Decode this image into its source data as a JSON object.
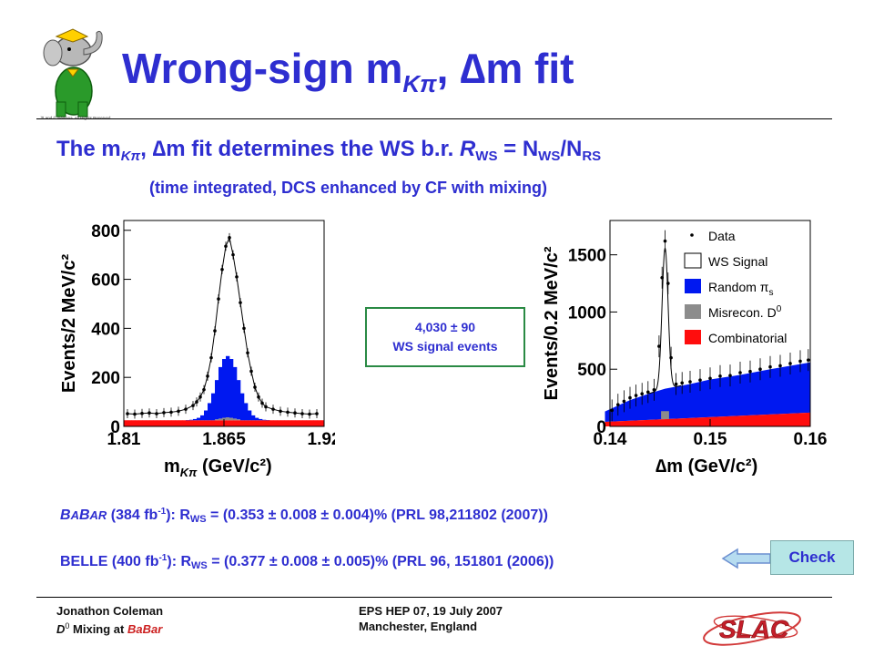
{
  "title": {
    "main": "Wrong-sign m",
    "sub": "Kπ",
    "comma": ",",
    "delta": "∆m",
    "fit": "fit"
  },
  "subtitle": {
    "lead": "The m",
    "sub_kpi": "Kπ",
    "mid": ", ∆m fit determines the WS b.r. ",
    "r": "R",
    "sub_ws": "WS",
    "eq": " = N",
    "sub_ws2": "WS",
    "slash": "/N",
    "sub_rs": "RS"
  },
  "note": "(time integrated, DCS enhanced by CF with mixing)",
  "signal_box": {
    "line1": "4,030 ± 90",
    "line2": "WS signal events"
  },
  "babar": {
    "b1": "B",
    "b2": "A",
    "b3": "B",
    "b4": "AR",
    "lumi": " (384 fb",
    "lumi_sup": "-1",
    "rest1": "): R",
    "sub": "WS",
    "rest2": " = (0.353 ± 0.008 ± 0.004)% (PRL 98,211802 (2007))"
  },
  "belle": {
    "lumi": "BELLE (400 fb",
    "lumi_sup": "-1",
    "rest1": "): R",
    "sub": "WS",
    "rest2": " = (0.377 ± 0.008 ± 0.005)% (PRL 96, 151801 (2006))"
  },
  "check_button": "Check",
  "footer": {
    "author": "Jonathon Coleman",
    "topic_d": "D",
    "topic_sup": "0",
    "topic_mid": " Mixing at ",
    "topic_red": "BaBar",
    "conf": "EPS HEP 07, 19 July 2007",
    "place": "Manchester, England"
  },
  "colors": {
    "title_blue": "#2e2ed0",
    "signal_blue": "#0018f0",
    "combinatorial_red": "#ff0d0d",
    "misrecon_gray": "#8c8c8c"
  },
  "icons": {
    "logo_left": "babar-elephant-logo",
    "logo_right": "slac-logo",
    "arrow": "left-arrow-icon"
  },
  "chart_data": [
    {
      "type": "histogram",
      "xlabel": "m",
      "xlabel_sub": "Kπ",
      "xlabel_unit": "(GeV/c²)",
      "ylabel": "Events/2 MeV/c²",
      "xlim": [
        1.81,
        1.92
      ],
      "ylim": [
        0,
        840
      ],
      "x_ticks": [
        "1.81",
        "1.865",
        "1.92"
      ],
      "y_ticks": [
        "0",
        "200",
        "400",
        "600",
        "800"
      ],
      "bin_width": 0.002,
      "bin_start": 1.81,
      "combinatorial": 25,
      "misrecon": [
        0,
        0,
        0,
        0,
        0,
        0,
        0,
        0,
        0,
        0,
        0,
        0,
        0,
        0,
        0,
        0,
        0,
        0,
        0,
        0,
        0,
        0,
        0,
        0,
        0,
        4,
        7,
        10,
        12,
        10,
        7,
        4,
        0,
        0,
        0,
        0,
        0,
        0,
        0,
        0,
        0,
        0,
        0,
        0,
        0,
        0,
        0,
        0,
        0,
        0,
        0,
        0,
        0,
        0,
        0
      ],
      "random_pi": [
        0,
        0,
        0,
        0,
        0,
        0,
        0,
        0,
        0,
        0,
        0,
        0,
        0,
        0,
        0,
        0,
        0,
        1,
        2,
        5,
        10,
        20,
        40,
        70,
        110,
        160,
        210,
        240,
        250,
        240,
        210,
        160,
        110,
        70,
        40,
        20,
        10,
        5,
        2,
        1,
        0,
        0,
        0,
        0,
        0,
        0,
        0,
        0,
        0,
        0,
        0,
        0,
        0,
        0,
        0
      ],
      "data_points": [
        [
          1.812,
          52
        ],
        [
          1.816,
          50
        ],
        [
          1.82,
          53
        ],
        [
          1.824,
          55
        ],
        [
          1.828,
          52
        ],
        [
          1.832,
          56
        ],
        [
          1.836,
          58
        ],
        [
          1.84,
          62
        ],
        [
          1.844,
          70
        ],
        [
          1.848,
          85
        ],
        [
          1.85,
          100
        ],
        [
          1.852,
          120
        ],
        [
          1.854,
          150
        ],
        [
          1.856,
          205
        ],
        [
          1.858,
          280
        ],
        [
          1.86,
          390
        ],
        [
          1.862,
          520
        ],
        [
          1.864,
          640
        ],
        [
          1.866,
          735
        ],
        [
          1.868,
          770
        ],
        [
          1.87,
          700
        ],
        [
          1.872,
          610
        ],
        [
          1.874,
          505
        ],
        [
          1.876,
          400
        ],
        [
          1.878,
          300
        ],
        [
          1.88,
          225
        ],
        [
          1.882,
          160
        ],
        [
          1.884,
          120
        ],
        [
          1.886,
          95
        ],
        [
          1.888,
          80
        ],
        [
          1.892,
          70
        ],
        [
          1.896,
          62
        ],
        [
          1.9,
          58
        ],
        [
          1.904,
          55
        ],
        [
          1.908,
          52
        ],
        [
          1.912,
          50
        ],
        [
          1.916,
          52
        ]
      ]
    },
    {
      "type": "histogram",
      "xlabel": "∆m (GeV/c²)",
      "ylabel": "Events/0.2 MeV/c²",
      "xlim": [
        0.14,
        0.16
      ],
      "ylim": [
        0,
        1800
      ],
      "x_ticks": [
        "0.14",
        "0.15",
        "0.16"
      ],
      "y_ticks": [
        "0",
        "500",
        "1000",
        "1500"
      ],
      "legend_position": "top-right",
      "legend": [
        "Data",
        "WS Signal",
        "Random π",
        "Misrecon. D",
        "Combinatorial"
      ],
      "legend_sub": {
        "2": "s"
      },
      "legend_sup": {
        "3": "0"
      },
      "combinatorial": [
        [
          0.1395,
          40
        ],
        [
          0.16,
          120
        ]
      ],
      "random_pi_top": [
        [
          0.1395,
          130
        ],
        [
          0.142,
          230
        ],
        [
          0.144,
          290
        ],
        [
          0.1455,
          330
        ],
        [
          0.148,
          370
        ],
        [
          0.15,
          410
        ],
        [
          0.153,
          450
        ],
        [
          0.156,
          500
        ],
        [
          0.16,
          560
        ]
      ],
      "signal_peak": {
        "center": 0.1455,
        "height": 1230,
        "sigma": 0.0003
      },
      "data_points": [
        [
          0.1402,
          140
        ],
        [
          0.1408,
          190
        ],
        [
          0.1414,
          220
        ],
        [
          0.142,
          250
        ],
        [
          0.1426,
          270
        ],
        [
          0.1432,
          285
        ],
        [
          0.1438,
          300
        ],
        [
          0.1444,
          320
        ],
        [
          0.1449,
          700
        ],
        [
          0.1452,
          1300
        ],
        [
          0.1455,
          1620
        ],
        [
          0.1458,
          1250
        ],
        [
          0.1461,
          600
        ],
        [
          0.1466,
          370
        ],
        [
          0.1472,
          380
        ],
        [
          0.148,
          390
        ],
        [
          0.149,
          405
        ],
        [
          0.15,
          420
        ],
        [
          0.151,
          440
        ],
        [
          0.152,
          445
        ],
        [
          0.153,
          470
        ],
        [
          0.154,
          480
        ],
        [
          0.155,
          500
        ],
        [
          0.156,
          520
        ],
        [
          0.157,
          530
        ],
        [
          0.158,
          550
        ],
        [
          0.159,
          570
        ],
        [
          0.1598,
          580
        ]
      ]
    }
  ]
}
